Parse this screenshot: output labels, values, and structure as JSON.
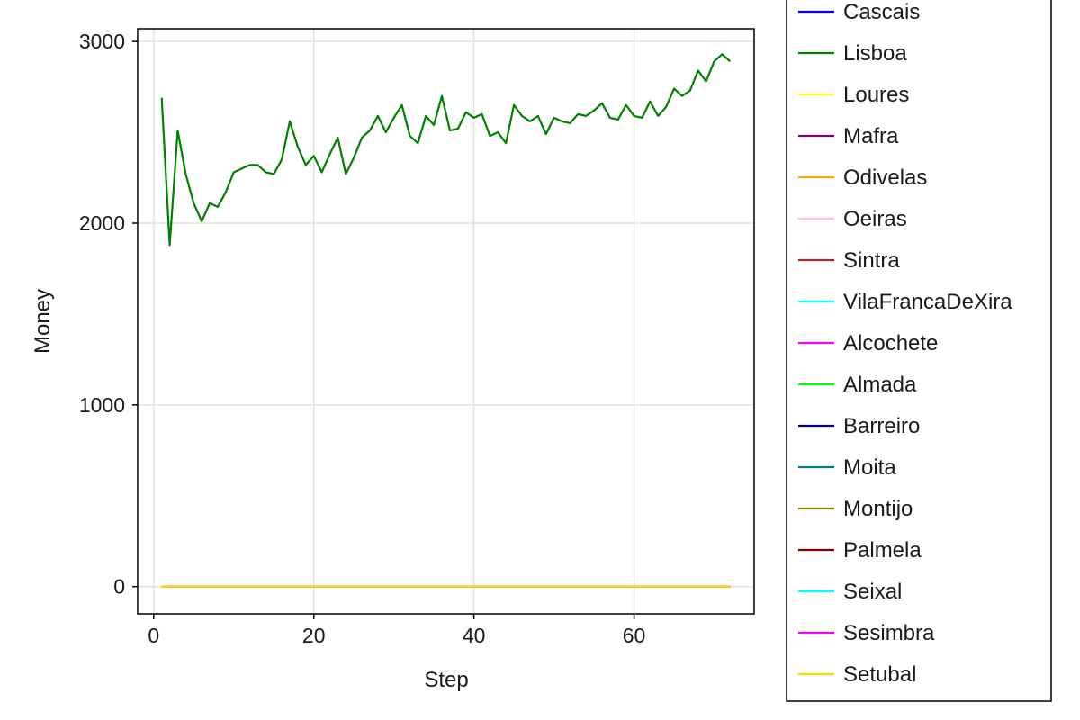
{
  "chart_data": {
    "type": "line",
    "title": "",
    "xlabel": "Step",
    "ylabel": "Money",
    "xlim": [
      -2,
      75
    ],
    "ylim": [
      -150,
      3070
    ],
    "x_ticks": [
      0,
      20,
      40,
      60
    ],
    "y_ticks": [
      0,
      1000,
      2000,
      3000
    ],
    "x_tick_labels": [
      "0",
      "20",
      "40",
      "60"
    ],
    "y_tick_labels": [
      "0",
      "1000",
      "2000",
      "3000"
    ],
    "grid": true,
    "legend_position": "right",
    "x": [
      1,
      2,
      3,
      4,
      5,
      6,
      7,
      8,
      9,
      10,
      11,
      12,
      13,
      14,
      15,
      16,
      17,
      18,
      19,
      20,
      21,
      22,
      23,
      24,
      25,
      26,
      27,
      28,
      29,
      30,
      31,
      32,
      33,
      34,
      35,
      36,
      37,
      38,
      39,
      40,
      41,
      42,
      43,
      44,
      45,
      46,
      47,
      48,
      49,
      50,
      51,
      52,
      53,
      54,
      55,
      56,
      57,
      58,
      59,
      60,
      61,
      62,
      63,
      64,
      65,
      66,
      67,
      68,
      69,
      70,
      71,
      72
    ],
    "series": [
      {
        "name": "Cascais",
        "color": "#0000ff",
        "values": "zero"
      },
      {
        "name": "Lisboa",
        "color": "#008000",
        "values": [
          2690,
          1880,
          2510,
          2270,
          2110,
          2010,
          2110,
          2090,
          2170,
          2280,
          2300,
          2320,
          2320,
          2280,
          2270,
          2350,
          2560,
          2420,
          2320,
          2370,
          2280,
          2380,
          2470,
          2270,
          2360,
          2470,
          2510,
          2590,
          2500,
          2580,
          2650,
          2480,
          2440,
          2590,
          2540,
          2700,
          2510,
          2520,
          2610,
          2580,
          2600,
          2480,
          2500,
          2440,
          2650,
          2590,
          2560,
          2590,
          2490,
          2580,
          2560,
          2550,
          2600,
          2590,
          2620,
          2660,
          2580,
          2570,
          2650,
          2590,
          2580,
          2670,
          2590,
          2640,
          2740,
          2700,
          2730,
          2840,
          2780,
          2890,
          2930,
          2890
        ]
      },
      {
        "name": "Loures",
        "color": "#ffff00",
        "values": "zero"
      },
      {
        "name": "Mafra",
        "color": "#800080",
        "values": "zero"
      },
      {
        "name": "Odivelas",
        "color": "#ffa500",
        "values": "zero"
      },
      {
        "name": "Oeiras",
        "color": "#ffc0cb",
        "values": "zero"
      },
      {
        "name": "Sintra",
        "color": "#a52a2a",
        "values": "zero"
      },
      {
        "name": "VilaFrancaDeXira",
        "color": "#00ffff",
        "values": "zero"
      },
      {
        "name": "Alcochete",
        "color": "#ff00ff",
        "values": "zero"
      },
      {
        "name": "Almada",
        "color": "#00ff00",
        "values": "zero"
      },
      {
        "name": "Barreiro",
        "color": "#000080",
        "values": "zero"
      },
      {
        "name": "Moita",
        "color": "#008080",
        "values": "zero"
      },
      {
        "name": "Montijo",
        "color": "#808000",
        "values": "zero"
      },
      {
        "name": "Palmela",
        "color": "#800000",
        "values": "zero"
      },
      {
        "name": "Seixal",
        "color": "#00ffff",
        "values": "zero"
      },
      {
        "name": "Sesimbra",
        "color": "#ff00ff",
        "values": "zero"
      },
      {
        "name": "Setubal",
        "color": "#ffd700",
        "values": "zero"
      }
    ]
  }
}
